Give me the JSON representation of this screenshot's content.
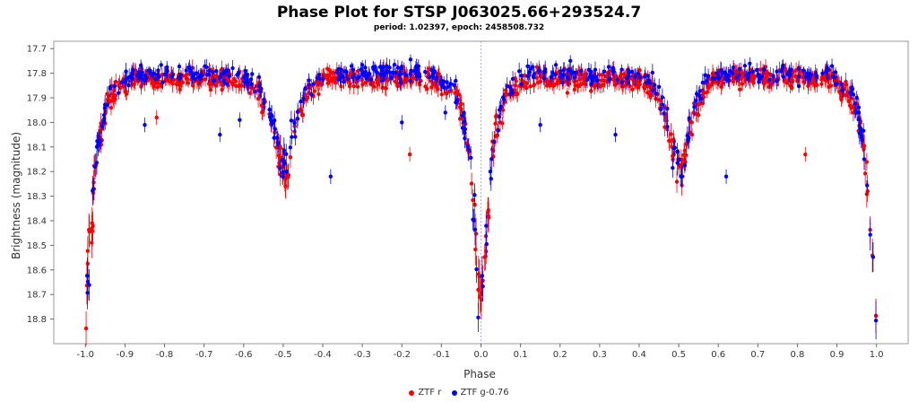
{
  "chart_data": {
    "type": "scatter",
    "title": "Phase Plot for STSP J063025.66+293524.7",
    "subtitle": "period: 1.02397, epoch: 2458508.732",
    "xlabel": "Phase",
    "ylabel": "Brightness (magnitude)",
    "xlim": [
      -1.08,
      1.08
    ],
    "ylim": [
      18.9,
      17.67
    ],
    "x_ticks": [
      "-1.0",
      "-0.9",
      "-0.8",
      "-0.7",
      "-0.6",
      "-0.5",
      "-0.4",
      "-0.3",
      "-0.2",
      "-0.1",
      "0.0",
      "0.1",
      "0.2",
      "0.3",
      "0.4",
      "0.5",
      "0.6",
      "0.7",
      "0.8",
      "0.9",
      "1.0"
    ],
    "y_ticks": [
      "17.7",
      "17.8",
      "17.9",
      "18.0",
      "18.1",
      "18.2",
      "18.3",
      "18.4",
      "18.5",
      "18.6",
      "18.7",
      "18.8"
    ],
    "legend_position": "bottom-center",
    "series": [
      {
        "name": "ZTF r",
        "color": "#ff0000",
        "profile": [
          [
            -0.12,
            17.82
          ],
          [
            -0.06,
            17.9
          ],
          [
            -0.03,
            18.1
          ],
          [
            -0.015,
            18.45
          ],
          [
            0.0,
            18.75
          ],
          [
            0.015,
            18.45
          ],
          [
            0.03,
            18.1
          ],
          [
            0.06,
            17.9
          ],
          [
            0.12,
            17.82
          ],
          [
            0.4,
            17.83
          ],
          [
            0.44,
            17.88
          ],
          [
            0.47,
            18.0
          ],
          [
            0.495,
            18.18
          ],
          [
            0.51,
            18.2
          ],
          [
            0.53,
            18.0
          ],
          [
            0.56,
            17.88
          ],
          [
            0.6,
            17.82
          ]
        ],
        "outliers": [
          [
            -0.82,
            17.98
          ],
          [
            -0.18,
            18.13
          ],
          [
            0.82,
            18.13
          ],
          [
            -0.45,
            17.97
          ],
          [
            0.55,
            17.97
          ]
        ]
      },
      {
        "name": "ZTF g-0.76",
        "color": "#0000ff",
        "profile": [
          [
            -0.12,
            17.8
          ],
          [
            -0.06,
            17.88
          ],
          [
            -0.03,
            18.1
          ],
          [
            -0.015,
            18.45
          ],
          [
            0.0,
            18.8
          ],
          [
            0.015,
            18.45
          ],
          [
            0.03,
            18.1
          ],
          [
            0.06,
            17.88
          ],
          [
            0.12,
            17.8
          ],
          [
            0.4,
            17.81
          ],
          [
            0.44,
            17.86
          ],
          [
            0.47,
            17.98
          ],
          [
            0.495,
            18.15
          ],
          [
            0.51,
            18.18
          ],
          [
            0.53,
            17.98
          ],
          [
            0.56,
            17.86
          ],
          [
            0.6,
            17.8
          ]
        ],
        "outliers": [
          [
            -0.38,
            18.22
          ],
          [
            0.62,
            18.22
          ],
          [
            -0.66,
            18.05
          ],
          [
            0.34,
            18.05
          ],
          [
            -0.61,
            17.99
          ],
          [
            -0.2,
            18.0
          ],
          [
            -0.09,
            17.96
          ],
          [
            -0.85,
            18.01
          ],
          [
            0.15,
            18.01
          ]
        ]
      }
    ]
  }
}
